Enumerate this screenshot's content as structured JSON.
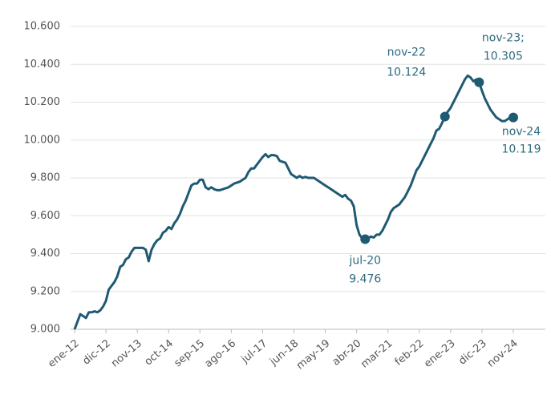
{
  "chart_data": {
    "type": "line",
    "categories": [
      "ene-12",
      null,
      null,
      null,
      null,
      null,
      null,
      null,
      null,
      null,
      null,
      "dic-12",
      null,
      null,
      null,
      null,
      null,
      null,
      null,
      null,
      null,
      null,
      "nov-13",
      null,
      null,
      null,
      null,
      null,
      null,
      null,
      null,
      null,
      null,
      "oct-14",
      null,
      null,
      null,
      null,
      null,
      null,
      null,
      null,
      null,
      null,
      "sep-15",
      null,
      null,
      null,
      null,
      null,
      null,
      null,
      null,
      null,
      null,
      "ago-16",
      null,
      null,
      null,
      null,
      null,
      null,
      null,
      null,
      null,
      null,
      "jul-17",
      null,
      null,
      null,
      null,
      null,
      null,
      null,
      null,
      null,
      null,
      "jun-18",
      null,
      null,
      null,
      null,
      null,
      null,
      null,
      null,
      null,
      null,
      "may-19",
      null,
      null,
      null,
      null,
      null,
      null,
      null,
      null,
      null,
      null,
      "abr-20",
      null,
      null,
      null,
      null,
      null,
      null,
      null,
      null,
      null,
      null,
      "mar-21",
      null,
      null,
      null,
      null,
      null,
      null,
      null,
      null,
      null,
      null,
      "feb-22",
      null,
      null,
      null,
      null,
      null,
      null,
      null,
      null,
      null,
      null,
      "ene-23",
      null,
      null,
      null,
      null,
      null,
      null,
      null,
      null,
      null,
      null,
      "dic-23",
      null,
      null,
      null,
      null,
      null,
      null,
      null,
      null,
      null,
      null,
      "nov-24"
    ],
    "series": [
      {
        "color": "#1f5a73",
        "values": [
          9000,
          9040,
          9080,
          9070,
          9060,
          9090,
          9090,
          9095,
          9090,
          9100,
          9120,
          9150,
          9210,
          9230,
          9250,
          9280,
          9330,
          9340,
          9370,
          9380,
          9410,
          9430,
          9430,
          9430,
          9430,
          9420,
          9360,
          9420,
          9450,
          9470,
          9480,
          9510,
          9520,
          9540,
          9530,
          9560,
          9580,
          9610,
          9650,
          9680,
          9720,
          9760,
          9770,
          9770,
          9790,
          9790,
          9750,
          9740,
          9750,
          9740,
          9735,
          9735,
          9740,
          9745,
          9750,
          9760,
          9770,
          9775,
          9780,
          9790,
          9800,
          9830,
          9850,
          9850,
          9870,
          9890,
          9910,
          9925,
          9910,
          9920,
          9920,
          9915,
          9890,
          9885,
          9880,
          9850,
          9820,
          9810,
          9800,
          9810,
          9800,
          9805,
          9800,
          9800,
          9800,
          9790,
          9780,
          9770,
          9760,
          9750,
          9740,
          9730,
          9720,
          9710,
          9700,
          9710,
          9690,
          9680,
          9650,
          9550,
          9500,
          9480,
          9476,
          9480,
          9490,
          9485,
          9500,
          9500,
          9520,
          9550,
          9580,
          9620,
          9640,
          9650,
          9660,
          9680,
          9700,
          9730,
          9760,
          9800,
          9840,
          9860,
          9890,
          9920,
          9950,
          9980,
          10010,
          10050,
          10060,
          10090,
          10124,
          10150,
          10170,
          10200,
          10230,
          10260,
          10290,
          10320,
          10340,
          10330,
          10310,
          10320,
          10305,
          10260,
          10220,
          10190,
          10160,
          10140,
          10120,
          10110,
          10100,
          10100,
          10110,
          10120,
          10119
        ]
      }
    ],
    "ylim": [
      9000,
      10600
    ],
    "yticks": [
      {
        "value": 9000,
        "label": "9.000"
      },
      {
        "value": 9200,
        "label": "9.200"
      },
      {
        "value": 9400,
        "label": "9.400"
      },
      {
        "value": 9600,
        "label": "9.600"
      },
      {
        "value": 9800,
        "label": "9.800"
      },
      {
        "value": 10000,
        "label": "10.000"
      },
      {
        "value": 10200,
        "label": "10.200"
      },
      {
        "value": 10400,
        "label": "10.400"
      },
      {
        "value": 10600,
        "label": "10.600"
      }
    ],
    "grid": true,
    "annotations": [
      {
        "label": "jul-20",
        "value": 9476,
        "value_label": "9.476"
      },
      {
        "label": "nov-22",
        "value": 10124,
        "value_label": "10.124"
      },
      {
        "label": "nov-23;",
        "value": 10305,
        "value_label": "10.305"
      },
      {
        "label": "nov-24",
        "value": 10119,
        "value_label": "10.119"
      }
    ],
    "annotation_color": "#2e6b80"
  }
}
